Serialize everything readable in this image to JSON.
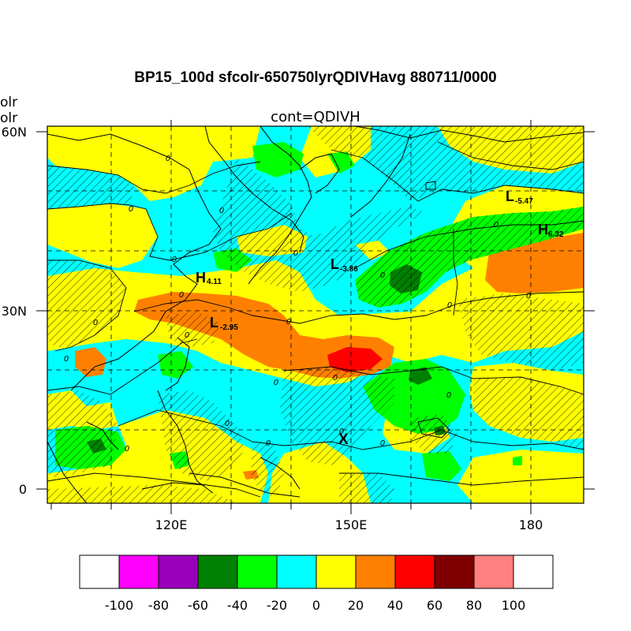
{
  "title": "BP15_100d sfcolr-650750lyrQDIVHavg  880711/0000",
  "subtitle": "cont=QDIVH",
  "left_tags": [
    "olr",
    "olr"
  ],
  "lat_labels": [
    {
      "text": "60N",
      "lat": 60
    },
    {
      "text": "30N",
      "lat": 30
    },
    {
      "text": "0",
      "lat": 0
    }
  ],
  "lon_labels": [
    {
      "text": "120E",
      "lon": 120
    },
    {
      "text": "150E",
      "lon": 150
    },
    {
      "text": "180",
      "lon": 180
    }
  ],
  "markers": [
    {
      "kind": "L",
      "value": "-5.47"
    },
    {
      "kind": "H",
      "value": "6.32"
    },
    {
      "kind": "L",
      "value": "-3.86"
    },
    {
      "kind": "H",
      "value": "4.11"
    },
    {
      "kind": "L",
      "value": "-2.95"
    }
  ],
  "storm_marker": "X",
  "contour_label": "0",
  "colorbar": {
    "colors": [
      "#ffffff",
      "#ff00ff",
      "#9900bb",
      "#008000",
      "#00ff00",
      "#00ffff",
      "#ffff00",
      "#ff8000",
      "#ff0000",
      "#7f0000",
      "#ff8080",
      "#ffffff"
    ],
    "ticks": [
      "-100",
      "-80",
      "-60",
      "-40",
      "-20",
      "0",
      "20",
      "40",
      "60",
      "80",
      "100"
    ]
  },
  "palette": {
    "cyan": "#00ffff",
    "yellow": "#ffff00",
    "orange": "#ff8000",
    "red": "#ff0000",
    "green": "#00ff00",
    "darkgreen": "#008000"
  }
}
